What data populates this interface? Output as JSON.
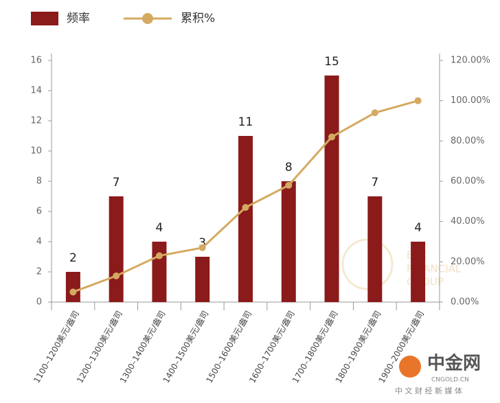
{
  "chart_data": {
    "type": "combo",
    "categories": [
      "1100–1200美元/盎司",
      "1200–1300美元/盎司",
      "1300–1400美元/盎司",
      "1400–1500美元/盎司",
      "1500–1600美元/盎司",
      "1600–1700美元/盎司",
      "1700–1800美元/盎司",
      "1800–1900美元/盎司",
      "1900–2000美元/盎司"
    ],
    "series": [
      {
        "name": "频率",
        "type": "bar",
        "axis": "y",
        "color": "#8b1a1a",
        "values": [
          2,
          7,
          4,
          3,
          11,
          8,
          15,
          7,
          4
        ]
      },
      {
        "name": "累积%",
        "type": "line",
        "axis": "y2",
        "color": "#d4a960",
        "values": [
          5,
          13,
          23,
          27,
          47,
          58,
          82,
          94,
          100
        ]
      }
    ],
    "ylim": [
      0,
      16
    ],
    "yticks": [
      0,
      2,
      4,
      6,
      8,
      10,
      12,
      14,
      16
    ],
    "y2lim": [
      0,
      120
    ],
    "y2ticks": [
      {
        "value": 0,
        "label": "0.00%"
      },
      {
        "value": 20,
        "label": "20.00%"
      },
      {
        "value": 40,
        "label": "40.00%"
      },
      {
        "value": 60,
        "label": "60.00%"
      },
      {
        "value": 80,
        "label": "80.00%"
      },
      {
        "value": 100,
        "label": "100.00%"
      },
      {
        "value": 120,
        "label": "120.00%"
      }
    ],
    "legend": "top-left",
    "grid": false
  },
  "watermark": [
    "EBC",
    "FINANCIAL",
    "GROUP"
  ],
  "logo": {
    "name": "中金网",
    "url": "CNGOLD.CN",
    "tagline": "中 文 财 经 新 媒 体"
  }
}
